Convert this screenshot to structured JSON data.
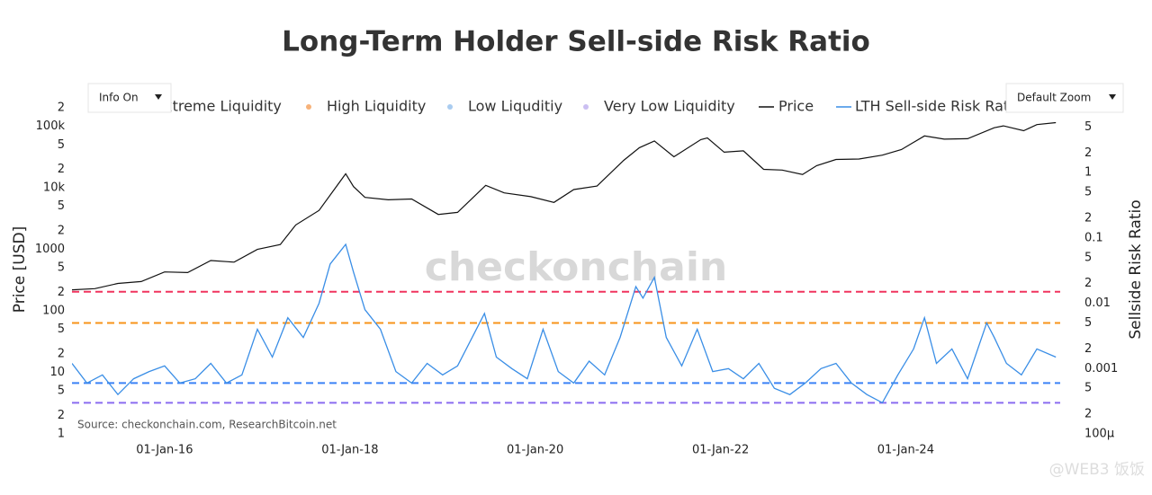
{
  "chart_data": {
    "type": "line",
    "title": "Long-Term Holder Sell-side Risk Ratio",
    "y_label": "Price [USD]",
    "y2_label": "Sellside Risk Ratio",
    "source": "Source: checkonchain.com, ResearchBitcoin.net",
    "watermark": "checkonchain",
    "corner_mark": "@WEB3 饭饭",
    "buttons": [
      "Info On",
      "Default Zoom"
    ],
    "log_y": true,
    "log_y2": true,
    "xlim": [
      "2015-01-01",
      "2025-09-01"
    ],
    "xticks": [
      {
        "value": "2016-01-01",
        "label": "01-Jan-16"
      },
      {
        "value": "2018-01-01",
        "label": "01-Jan-18"
      },
      {
        "value": "2020-01-01",
        "label": "01-Jan-20"
      },
      {
        "value": "2022-01-01",
        "label": "01-Jan-22"
      },
      {
        "value": "2024-01-01",
        "label": "01-Jan-24"
      }
    ],
    "ylim": [
      1,
      300000
    ],
    "yticks": [
      1,
      {
        "value": 2,
        "label": "2"
      },
      {
        "value": 5,
        "label": "5"
      },
      10,
      {
        "value": 20,
        "label": "2"
      },
      {
        "value": 50,
        "label": "5"
      },
      100,
      {
        "value": 200,
        "label": "2"
      },
      {
        "value": 500,
        "label": "5"
      },
      1000,
      {
        "value": 2000,
        "label": "2"
      },
      {
        "value": 5000,
        "label": "5"
      },
      {
        "value": 10000,
        "label": "10k"
      },
      {
        "value": 20000,
        "label": "2"
      },
      {
        "value": 50000,
        "label": "5"
      },
      {
        "value": 100000,
        "label": "100k"
      },
      {
        "value": 200000,
        "label": "2"
      }
    ],
    "y2lim": [
      0.0001,
      14.4
    ],
    "y2ticks": [
      {
        "value": 0.0001,
        "label": "100μ"
      },
      {
        "value": 0.0002,
        "label": "2"
      },
      {
        "value": 0.0005,
        "label": "5"
      },
      0.001,
      {
        "value": 0.002,
        "label": "2"
      },
      {
        "value": 0.005,
        "label": "5"
      },
      0.01,
      {
        "value": 0.02,
        "label": "2"
      },
      {
        "value": 0.05,
        "label": "5"
      },
      0.1,
      {
        "value": 0.2,
        "label": "2"
      },
      {
        "value": 0.5,
        "label": "5"
      },
      1,
      {
        "value": 2,
        "label": "2"
      },
      {
        "value": 5,
        "label": "5"
      }
    ],
    "thresholds": [
      {
        "name": "Extreme Liquidity",
        "color": "#f0345e",
        "value": 0.015
      },
      {
        "name": "High Liquidity",
        "color": "#f7931a",
        "value": 0.005
      },
      {
        "name": "Low Liquditiy",
        "color": "#3b82f6",
        "value": 0.0006
      },
      {
        "name": "Very Low Liquidity",
        "color": "#8b6cf0",
        "value": 0.0003
      }
    ],
    "series": [
      {
        "name": "Price",
        "color": "#111111",
        "x": [
          "2015-01-01",
          "2015-04-01",
          "2015-07-01",
          "2015-10-01",
          "2016-01-01",
          "2016-04-01",
          "2016-07-01",
          "2016-10-01",
          "2017-01-01",
          "2017-04-01",
          "2017-06-01",
          "2017-09-01",
          "2017-12-15",
          "2018-01-15",
          "2018-03-01",
          "2018-06-01",
          "2018-09-01",
          "2018-12-15",
          "2019-03-01",
          "2019-06-20",
          "2019-09-01",
          "2019-12-15",
          "2020-03-15",
          "2020-06-01",
          "2020-09-01",
          "2020-12-15",
          "2021-02-15",
          "2021-04-15",
          "2021-07-01",
          "2021-10-15",
          "2021-11-10",
          "2022-01-15",
          "2022-04-01",
          "2022-06-20",
          "2022-09-01",
          "2022-11-20",
          "2023-01-15",
          "2023-04-01",
          "2023-07-01",
          "2023-10-01",
          "2023-12-15",
          "2024-03-15",
          "2024-06-01",
          "2024-09-01",
          "2024-12-15",
          "2025-01-20",
          "2025-04-10",
          "2025-06-01",
          "2025-08-15"
        ],
        "values": [
          220,
          230,
          280,
          300,
          430,
          420,
          660,
          620,
          1000,
          1200,
          2500,
          4300,
          17000,
          10500,
          7000,
          6400,
          6600,
          3700,
          4000,
          11000,
          8300,
          7200,
          5800,
          9400,
          10700,
          28000,
          45000,
          58000,
          32000,
          61000,
          65000,
          38000,
          40000,
          20000,
          19500,
          16500,
          23000,
          29000,
          29500,
          34000,
          42000,
          70000,
          62000,
          63000,
          95000,
          102000,
          85000,
          107000,
          115000
        ]
      },
      {
        "name": "LTH Sell-side Risk Ratio",
        "color": "#3a8ee6",
        "axis": "y2",
        "x": [
          "2015-01-01",
          "2015-03-01",
          "2015-05-01",
          "2015-07-01",
          "2015-09-01",
          "2015-11-01",
          "2016-01-01",
          "2016-03-01",
          "2016-05-01",
          "2016-07-01",
          "2016-09-01",
          "2016-11-01",
          "2017-01-01",
          "2017-03-01",
          "2017-05-01",
          "2017-07-01",
          "2017-09-01",
          "2017-10-15",
          "2017-12-15",
          "2018-01-15",
          "2018-03-01",
          "2018-05-01",
          "2018-07-01",
          "2018-09-01",
          "2018-11-01",
          "2019-01-01",
          "2019-03-01",
          "2019-06-15",
          "2019-08-01",
          "2019-10-01",
          "2019-12-01",
          "2020-02-01",
          "2020-04-01",
          "2020-06-01",
          "2020-08-01",
          "2020-10-01",
          "2020-12-01",
          "2021-02-01",
          "2021-03-01",
          "2021-04-15",
          "2021-06-01",
          "2021-08-01",
          "2021-10-01",
          "2021-12-01",
          "2022-02-01",
          "2022-04-01",
          "2022-06-01",
          "2022-08-01",
          "2022-10-01",
          "2022-12-01",
          "2023-02-01",
          "2023-04-01",
          "2023-06-01",
          "2023-08-01",
          "2023-10-01",
          "2023-12-01",
          "2024-02-01",
          "2024-03-15",
          "2024-05-01",
          "2024-07-01",
          "2024-09-01",
          "2024-11-15",
          "2024-12-15",
          "2025-02-01",
          "2025-04-01",
          "2025-06-01",
          "2025-08-15"
        ],
        "values": [
          0.0012,
          0.0006,
          0.0008,
          0.0004,
          0.0007,
          0.0009,
          0.0011,
          0.0006,
          0.0007,
          0.0012,
          0.0006,
          0.0008,
          0.004,
          0.0015,
          0.006,
          0.003,
          0.01,
          0.04,
          0.08,
          0.03,
          0.008,
          0.004,
          0.0009,
          0.0006,
          0.0012,
          0.0008,
          0.0011,
          0.007,
          0.0015,
          0.001,
          0.0007,
          0.004,
          0.0009,
          0.0006,
          0.0013,
          0.0008,
          0.003,
          0.018,
          0.012,
          0.025,
          0.003,
          0.0011,
          0.004,
          0.0009,
          0.001,
          0.0007,
          0.0012,
          0.0005,
          0.0004,
          0.0006,
          0.001,
          0.0012,
          0.0006,
          0.0004,
          0.0003,
          0.0008,
          0.002,
          0.006,
          0.0012,
          0.002,
          0.0007,
          0.005,
          0.003,
          0.0012,
          0.0008,
          0.002,
          0.0015
        ]
      }
    ]
  }
}
